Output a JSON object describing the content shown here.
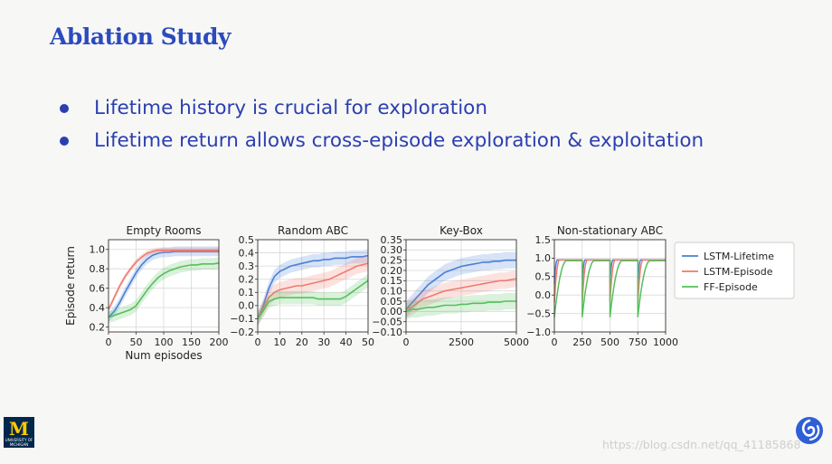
{
  "slide": {
    "title": "Ablation Study",
    "bullets": [
      "Lifetime history is crucial for exploration",
      "Lifetime return allows cross-episode exploration & exploitation"
    ]
  },
  "logos": {
    "left": {
      "mark": "M",
      "text": "UNIVERSITY OF MICHIGAN",
      "icon": "university-of-michigan-logo"
    },
    "right": {
      "icon": "deepmind-logo"
    }
  },
  "watermark": "https://blog.csdn.net/qq_41185868",
  "colors": {
    "lstm_lifetime": "#4a7fd8",
    "lstm_episode": "#f07a6e",
    "ff_episode": "#55bf5c",
    "title": "#2b4bbd",
    "bullet_text": "#2b3fb0"
  },
  "chart_data": [
    {
      "type": "line",
      "title": "Empty Rooms",
      "xlabel": "Num episodes",
      "ylabel": "Episode return",
      "xlim": [
        0,
        200
      ],
      "ylim": [
        0.15,
        1.1
      ],
      "xticks": [
        "0",
        "50",
        "100",
        "150",
        "200"
      ],
      "xtick_values": [
        0,
        50,
        100,
        150,
        200
      ],
      "yticks": [
        "0.2",
        "0.4",
        "0.6",
        "0.8",
        "1.0"
      ],
      "ytick_values": [
        0.2,
        0.4,
        0.6,
        0.8,
        1.0
      ],
      "grid": true,
      "x": [
        0,
        10,
        20,
        30,
        40,
        50,
        60,
        70,
        80,
        90,
        100,
        110,
        120,
        130,
        140,
        150,
        160,
        170,
        180,
        190,
        200
      ],
      "series": [
        {
          "key": "lstm_lifetime",
          "values": [
            0.3,
            0.36,
            0.45,
            0.56,
            0.66,
            0.76,
            0.84,
            0.9,
            0.94,
            0.96,
            0.97,
            0.97,
            0.98,
            0.98,
            0.98,
            0.98,
            0.98,
            0.98,
            0.98,
            0.98,
            0.98
          ],
          "band": 0.05
        },
        {
          "key": "lstm_episode",
          "values": [
            0.38,
            0.5,
            0.62,
            0.72,
            0.8,
            0.87,
            0.92,
            0.96,
            0.98,
            0.99,
            0.99,
            0.99,
            0.99,
            0.99,
            0.99,
            0.99,
            0.99,
            0.99,
            0.99,
            0.99,
            0.99
          ],
          "band": 0.03
        },
        {
          "key": "ff_episode",
          "values": [
            0.3,
            0.32,
            0.34,
            0.36,
            0.38,
            0.42,
            0.5,
            0.58,
            0.65,
            0.71,
            0.75,
            0.78,
            0.8,
            0.82,
            0.83,
            0.84,
            0.84,
            0.85,
            0.85,
            0.85,
            0.86
          ],
          "band": 0.06
        }
      ]
    },
    {
      "type": "line",
      "title": "Random ABC",
      "xlabel": "",
      "ylabel": "",
      "xlim": [
        0,
        50
      ],
      "ylim": [
        -0.2,
        0.5
      ],
      "xticks": [
        "0",
        "10",
        "20",
        "30",
        "40",
        "50"
      ],
      "xtick_values": [
        0,
        10,
        20,
        30,
        40,
        50
      ],
      "yticks": [
        "−0.2",
        "−0.1",
        "0.0",
        "0.1",
        "0.2",
        "0.3",
        "0.4",
        "0.5"
      ],
      "ytick_values": [
        -0.2,
        -0.1,
        0.0,
        0.1,
        0.2,
        0.3,
        0.4,
        0.5
      ],
      "grid": true,
      "x": [
        0,
        2.5,
        5,
        7.5,
        10,
        12.5,
        15,
        17.5,
        20,
        22.5,
        25,
        27.5,
        30,
        32.5,
        35,
        37.5,
        40,
        42.5,
        45,
        47.5,
        50
      ],
      "series": [
        {
          "key": "lstm_lifetime",
          "values": [
            -0.1,
            0.0,
            0.13,
            0.22,
            0.26,
            0.28,
            0.3,
            0.31,
            0.32,
            0.33,
            0.34,
            0.34,
            0.35,
            0.35,
            0.36,
            0.36,
            0.36,
            0.37,
            0.37,
            0.37,
            0.38
          ],
          "band": 0.05
        },
        {
          "key": "lstm_episode",
          "values": [
            -0.1,
            -0.02,
            0.06,
            0.1,
            0.12,
            0.13,
            0.14,
            0.15,
            0.15,
            0.16,
            0.17,
            0.18,
            0.19,
            0.2,
            0.22,
            0.24,
            0.26,
            0.28,
            0.3,
            0.31,
            0.32
          ],
          "band": 0.06
        },
        {
          "key": "ff_episode",
          "values": [
            -0.1,
            -0.04,
            0.03,
            0.05,
            0.06,
            0.06,
            0.06,
            0.06,
            0.06,
            0.06,
            0.06,
            0.05,
            0.05,
            0.05,
            0.05,
            0.05,
            0.07,
            0.1,
            0.13,
            0.16,
            0.19
          ],
          "band": 0.05
        }
      ]
    },
    {
      "type": "line",
      "title": "Key-Box",
      "xlabel": "",
      "ylabel": "",
      "xlim": [
        0,
        5000
      ],
      "ylim": [
        -0.1,
        0.35
      ],
      "xticks": [
        "0",
        "2500",
        "5000"
      ],
      "xtick_values": [
        0,
        2500,
        5000
      ],
      "yticks": [
        "−0.10",
        "−0.05",
        "0.00",
        "0.05",
        "0.10",
        "0.15",
        "0.20",
        "0.25",
        "0.30",
        "0.35"
      ],
      "ytick_values": [
        -0.1,
        -0.05,
        0.0,
        0.05,
        0.1,
        0.15,
        0.2,
        0.25,
        0.3,
        0.35
      ],
      "grid": true,
      "x": [
        0,
        250,
        500,
        750,
        1000,
        1250,
        1500,
        1750,
        2000,
        2250,
        2500,
        2750,
        3000,
        3250,
        3500,
        3750,
        4000,
        4250,
        4500,
        4750,
        5000
      ],
      "series": [
        {
          "key": "lstm_lifetime",
          "values": [
            0.01,
            0.04,
            0.07,
            0.1,
            0.13,
            0.15,
            0.17,
            0.19,
            0.2,
            0.21,
            0.22,
            0.225,
            0.23,
            0.235,
            0.24,
            0.24,
            0.245,
            0.245,
            0.25,
            0.25,
            0.25
          ],
          "band": 0.04
        },
        {
          "key": "lstm_episode",
          "values": [
            0.01,
            0.02,
            0.04,
            0.06,
            0.07,
            0.08,
            0.09,
            0.1,
            0.105,
            0.11,
            0.115,
            0.12,
            0.125,
            0.13,
            0.135,
            0.14,
            0.145,
            0.15,
            0.15,
            0.155,
            0.16
          ],
          "band": 0.04
        },
        {
          "key": "ff_episode",
          "values": [
            0.0,
            0.01,
            0.01,
            0.015,
            0.02,
            0.02,
            0.025,
            0.03,
            0.03,
            0.03,
            0.035,
            0.035,
            0.04,
            0.04,
            0.04,
            0.045,
            0.045,
            0.045,
            0.05,
            0.05,
            0.05
          ],
          "band": 0.04
        }
      ]
    },
    {
      "type": "line",
      "title": "Non-stationary ABC",
      "xlabel": "",
      "ylabel": "",
      "xlim": [
        0,
        1000
      ],
      "ylim": [
        -1.0,
        1.5
      ],
      "xticks": [
        "0",
        "250",
        "500",
        "750",
        "1000"
      ],
      "xtick_values": [
        0,
        250,
        500,
        750,
        1000
      ],
      "yticks": [
        "−1.0",
        "−0.5",
        "0.0",
        "0.5",
        "1.0",
        "1.5"
      ],
      "ytick_values": [
        -1.0,
        -0.5,
        0.0,
        0.5,
        1.0,
        1.5
      ],
      "grid": true,
      "segments": [
        0,
        250,
        500,
        750,
        1000
      ],
      "series": [
        {
          "key": "lstm_lifetime",
          "drop": 0.3,
          "recover": 25,
          "plateau": 0.95
        },
        {
          "key": "lstm_episode",
          "drop": -0.2,
          "recover": 45,
          "plateau": 0.95
        },
        {
          "key": "ff_episode",
          "drop": -0.6,
          "recover": 110,
          "plateau": 0.93
        }
      ],
      "legend": {
        "position": "right",
        "entries": [
          {
            "key": "lstm_lifetime",
            "label": "LSTM-Lifetime"
          },
          {
            "key": "lstm_episode",
            "label": "LSTM-Episode"
          },
          {
            "key": "ff_episode",
            "label": "FF-Episode"
          }
        ]
      }
    }
  ]
}
